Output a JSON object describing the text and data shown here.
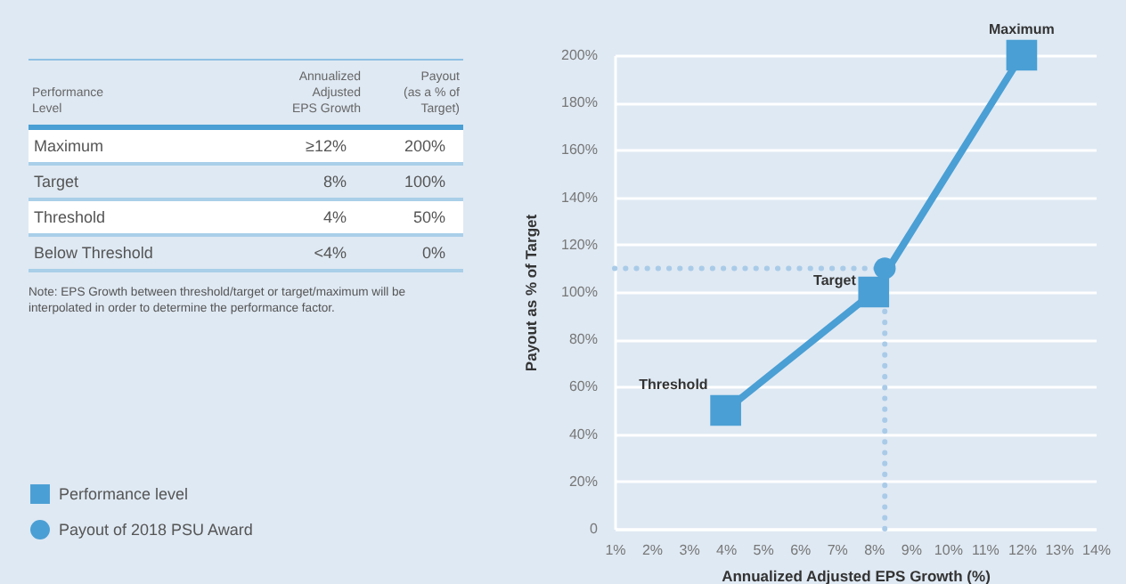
{
  "chart_data": [
    {
      "type": "other",
      "categories": [
        "Performance\nLevel",
        "Annualized\nAdjusted\nEPS Growth",
        "Payout\n(as a % of\nTarget)"
      ],
      "cell_labels": [
        [
          "Maximum",
          "≥12%",
          "200%"
        ],
        [
          "Target",
          "8%",
          "100%"
        ],
        [
          "Threshold",
          "4%",
          "50%"
        ],
        [
          "Below Threshold",
          "<4%",
          "0%"
        ]
      ],
      "annotations": [
        "Note: EPS Growth between threshold/target or target/maximum will be interpolated in order to determine the performance factor."
      ]
    },
    {
      "type": "line",
      "xlabel": "Annualized Adjusted EPS Growth (%)",
      "ylabel": "Payout as % of Target",
      "series": [
        {
          "name": "Performance level",
          "type": "line",
          "marker": "square",
          "color": "#4a9fd4",
          "x": [
            4,
            8,
            12
          ],
          "values": [
            50,
            100,
            200
          ]
        },
        {
          "name": "Payout of 2018 PSU Award",
          "type": "scatter",
          "marker": "circle",
          "color": "#4a9fd4",
          "x": [
            8.3
          ],
          "values": [
            110
          ]
        }
      ],
      "xlim": [
        1,
        14
      ],
      "xticks": [
        {
          "value": 1,
          "label": "1%"
        },
        {
          "value": 2,
          "label": "2%"
        },
        {
          "value": 3,
          "label": "3%"
        },
        {
          "value": 4,
          "label": "4%"
        },
        {
          "value": 5,
          "label": "5%"
        },
        {
          "value": 6,
          "label": "6%"
        },
        {
          "value": 7,
          "label": "7%"
        },
        {
          "value": 8,
          "label": "8%"
        },
        {
          "value": 9,
          "label": "9%"
        },
        {
          "value": 10,
          "label": "10%"
        },
        {
          "value": 11,
          "label": "11%"
        },
        {
          "value": 12,
          "label": "12%"
        },
        {
          "value": 13,
          "label": "13%"
        },
        {
          "value": 14,
          "label": "14%"
        }
      ],
      "ylim": [
        0,
        200
      ],
      "yticks": [
        0,
        {
          "value": 20,
          "label": "20%"
        },
        {
          "value": 40,
          "label": "40%"
        },
        {
          "value": 60,
          "label": "60%"
        },
        {
          "value": 80,
          "label": "80%"
        },
        {
          "value": 100,
          "label": "100%"
        },
        {
          "value": 120,
          "label": "120%"
        },
        {
          "value": 140,
          "label": "140%"
        },
        {
          "value": 160,
          "label": "160%"
        },
        {
          "value": 180,
          "label": "180%"
        },
        {
          "value": 200,
          "label": "200%"
        }
      ],
      "ref_lines": [
        {
          "axis": "y",
          "value": 110,
          "color": "#a9cbe8",
          "line_style": "dotted"
        },
        {
          "axis": "x",
          "value": 8.3,
          "color": "#a9cbe8",
          "line_style": "dotted"
        }
      ],
      "annotations": [
        {
          "text": "Maximum",
          "x": 12,
          "y": 200
        },
        {
          "text": "Target",
          "x": 8,
          "y": 100
        },
        {
          "text": "Threshold",
          "x": 4,
          "y": 50
        }
      ],
      "grid": "y",
      "legend": "bottom left"
    }
  ]
}
